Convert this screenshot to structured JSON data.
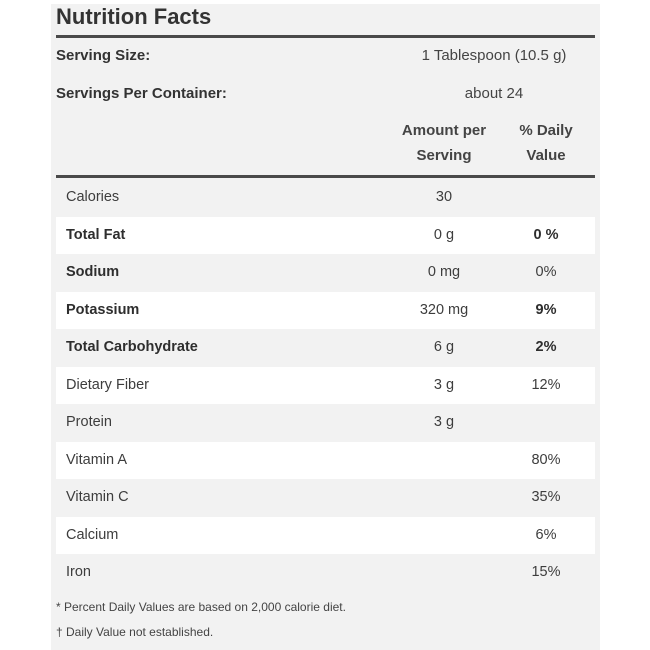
{
  "title": "Nutrition Facts",
  "serving_size": {
    "label": "Serving Size:",
    "value": "1 Tablespoon (10.5 g)"
  },
  "servings_per_container": {
    "label": "Servings Per Container:",
    "value": "about 24"
  },
  "columns": {
    "amount": [
      "Amount per",
      "Serving"
    ],
    "daily_value": [
      "% Daily",
      "Value"
    ]
  },
  "rows": [
    {
      "name": "Calories",
      "bold": false,
      "amount": "30",
      "dv": "",
      "dv_bold": false
    },
    {
      "name": "Total Fat",
      "bold": true,
      "amount": "0 g",
      "dv": "0 %",
      "dv_bold": true
    },
    {
      "name": "Sodium",
      "bold": true,
      "amount": "0 mg",
      "dv": "0%",
      "dv_bold": false
    },
    {
      "name": "Potassium",
      "bold": true,
      "amount": "320 mg",
      "dv": "9%",
      "dv_bold": true
    },
    {
      "name": "Total Carbohydrate",
      "bold": true,
      "amount": "6 g",
      "dv": "2%",
      "dv_bold": true
    },
    {
      "name": "Dietary Fiber",
      "bold": false,
      "amount": "3 g",
      "dv": "12%",
      "dv_bold": false
    },
    {
      "name": "Protein",
      "bold": false,
      "amount": "3 g",
      "dv": "",
      "dv_bold": false
    },
    {
      "name": "Vitamin A",
      "bold": false,
      "amount": "",
      "dv": "80%",
      "dv_bold": false
    },
    {
      "name": "Vitamin C",
      "bold": false,
      "amount": "",
      "dv": "35%",
      "dv_bold": false
    },
    {
      "name": "Calcium",
      "bold": false,
      "amount": "",
      "dv": "6%",
      "dv_bold": false
    },
    {
      "name": "Iron",
      "bold": false,
      "amount": "",
      "dv": "15%",
      "dv_bold": false
    }
  ],
  "footnotes": [
    "* Percent Daily Values are based on 2,000 calorie diet.",
    "† Daily Value not established."
  ]
}
